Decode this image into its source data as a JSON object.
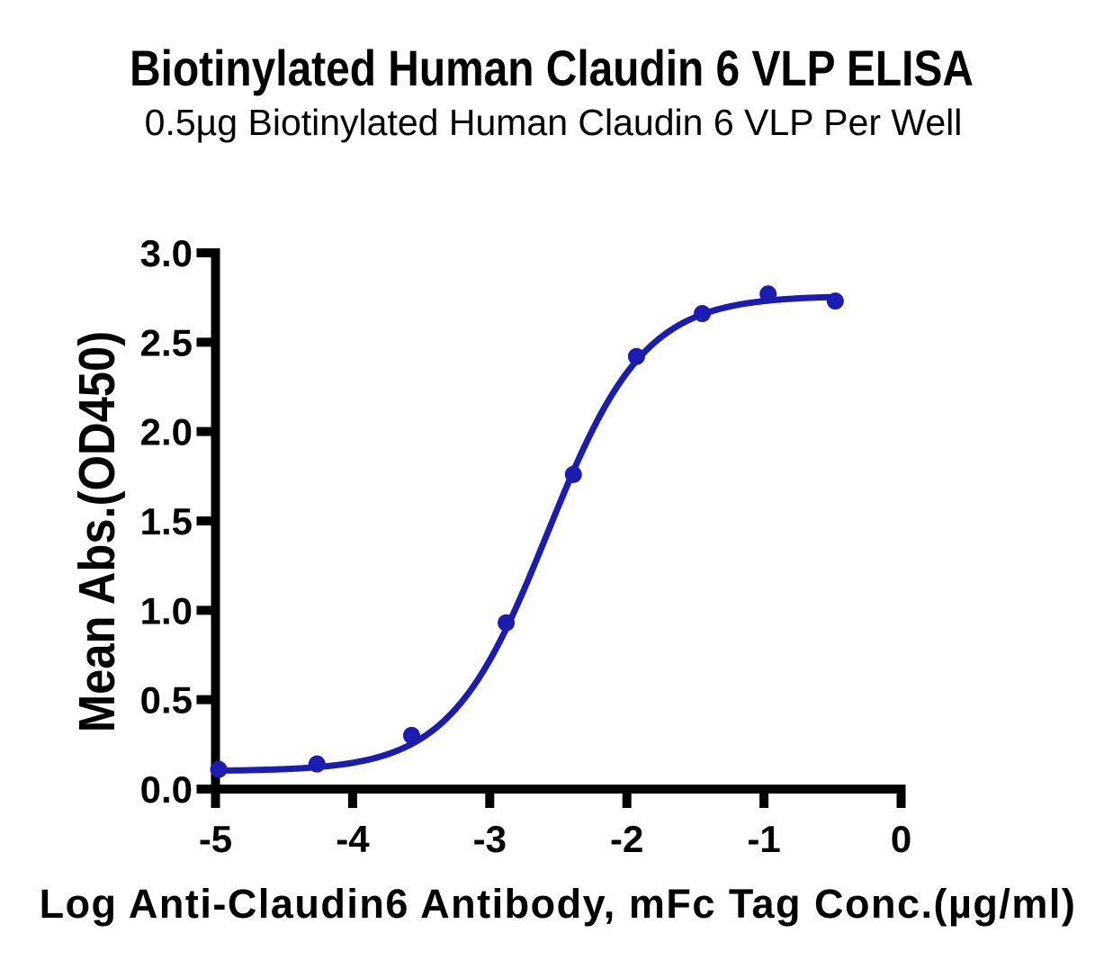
{
  "title": "Biotinylated Human Claudin 6 VLP ELISA",
  "subtitle": "0.5µg Biotinylated Human Claudin 6 VLP Per Well",
  "chart_data": {
    "type": "scatter",
    "series": [
      {
        "name": "Biotinylated Human Claudin 6 VLP",
        "x": [
          -5.0,
          -4.26,
          -3.57,
          -2.88,
          -2.39,
          -1.93,
          -1.45,
          -0.97,
          -0.48
        ],
        "y": [
          0.11,
          0.14,
          0.3,
          0.93,
          1.76,
          2.42,
          2.66,
          2.77,
          2.73
        ]
      }
    ],
    "fit_curve": {
      "model": "4PL sigmoid",
      "bottom": 0.1,
      "top": 2.76,
      "logEC50": -2.58,
      "hillslope": 1.23,
      "x_start": -4.98,
      "x_end": -0.48
    },
    "xlabel": "Log Anti-Claudin6 Antibody, mFc Tag Conc.(µg/ml)",
    "ylabel": "Mean Abs.(OD450)",
    "xlim": [
      -5,
      0
    ],
    "ylim": [
      0,
      3
    ],
    "x_ticks": [
      -5,
      -4,
      -3,
      -2,
      -1,
      0
    ],
    "x_tick_labels": [
      "-5",
      "-4",
      "-3",
      "-2",
      "-1",
      "0"
    ],
    "y_ticks": [
      0,
      0.5,
      1,
      1.5,
      2,
      2.5,
      3
    ],
    "y_tick_labels": [
      "0.0",
      "0.5",
      "1.0",
      "1.5",
      "2.0",
      "2.5",
      "3.0"
    ],
    "grid": false,
    "legend": "none",
    "accent_color": "#1B1DB0",
    "axis_color": "#000000",
    "text_color": "#000000"
  }
}
